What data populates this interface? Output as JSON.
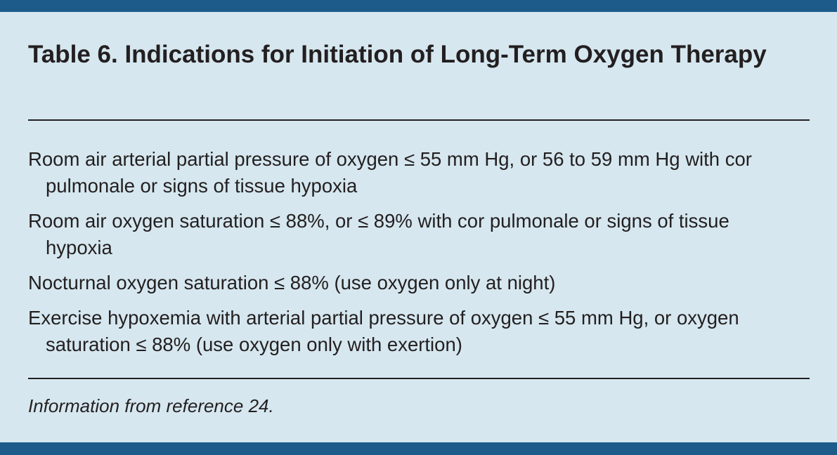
{
  "header": {
    "title": "Table 6. Indications for Initiation of Long-Term Oxygen Therapy"
  },
  "items": [
    "Room air arterial partial pressure of oxygen ≤ 55 mm Hg, or 56 to 59 mm Hg with cor pulmonale or signs of tissue hypoxia",
    "Room air oxygen saturation ≤ 88%, or ≤ 89% with cor pulmonale or signs of tissue hypoxia",
    "Nocturnal oxygen saturation ≤ 88% (use oxygen only at night)",
    "Exercise hypoxemia with arterial partial pressure of oxygen ≤ 55 mm Hg, or oxygen saturation ≤ 88% (use oxygen only with exertion)"
  ],
  "footer": {
    "source": "Information from reference 24."
  }
}
